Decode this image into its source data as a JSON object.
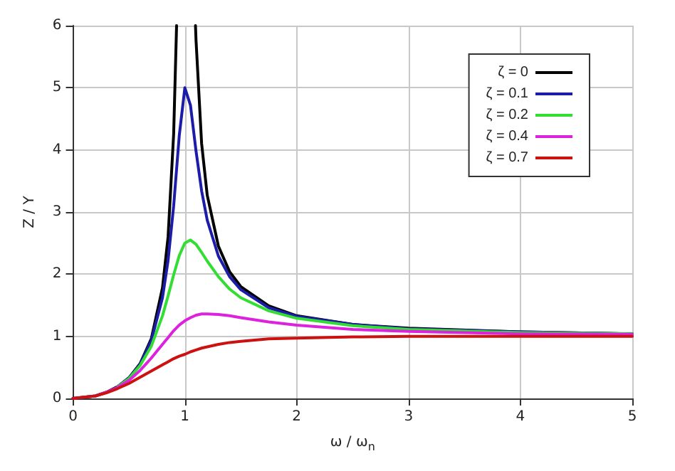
{
  "chart_data": {
    "type": "line",
    "xlabel": "ω / ω$_{n}$",
    "ylabel": "Z / Y",
    "x": [
      0,
      0.2,
      0.3,
      0.4,
      0.5,
      0.6,
      0.7,
      0.8,
      0.85,
      0.9,
      0.95,
      1,
      1.05,
      1.1,
      1.15,
      1.2,
      1.3,
      1.4,
      1.5,
      1.75,
      2,
      2.5,
      3,
      4,
      5
    ],
    "series": [
      {
        "name": "ζ = 0",
        "color": "#000000",
        "x": [
          0,
          0.2,
          0.3,
          0.4,
          0.5,
          0.6,
          0.7,
          0.8,
          0.85,
          0.9,
          0.926,
          1,
          1.095,
          1.1,
          1.15,
          1.2,
          1.3,
          1.4,
          1.5,
          1.75,
          2,
          2.5,
          3,
          4,
          5
        ],
        "values": [
          0,
          0.04,
          0.1,
          0.19,
          0.33,
          0.56,
          0.96,
          1.78,
          2.6,
          4.26,
          6,
          null,
          6,
          5.76,
          4.1,
          3.27,
          2.45,
          2.04,
          1.8,
          1.49,
          1.33,
          1.19,
          1.13,
          1.07,
          1.04
        ]
      },
      {
        "name": "ζ = 0.1",
        "color": "#1c1ca8",
        "values": [
          null,
          null,
          null,
          0.19,
          0.33,
          0.55,
          0.93,
          1.62,
          2.22,
          3.1,
          4.23,
          5,
          4.72,
          3.98,
          3.34,
          2.87,
          2.29,
          1.96,
          1.75,
          1.46,
          1.32,
          1.19,
          1.12,
          1.07,
          1.04
        ]
      },
      {
        "name": "ζ = 0.2",
        "color": "#33dd33",
        "values": [
          null,
          null,
          null,
          0.19,
          0.32,
          0.53,
          0.84,
          1.33,
          1.65,
          1.99,
          2.3,
          2.5,
          2.55,
          2.48,
          2.35,
          2.21,
          1.96,
          1.76,
          1.62,
          1.41,
          1.29,
          1.17,
          1.11,
          1.06,
          1.04
        ]
      },
      {
        "name": "ζ = 0.4",
        "color": "#dd22dd",
        "values": [
          0,
          0.04,
          0.1,
          0.18,
          0.29,
          0.45,
          0.65,
          0.87,
          0.98,
          1.09,
          1.18,
          1.25,
          1.3,
          1.34,
          1.36,
          1.36,
          1.35,
          1.33,
          1.3,
          1.23,
          1.18,
          1.11,
          1.08,
          1.04,
          1.03
        ]
      },
      {
        "name": "ζ = 0.7",
        "color": "#cc1111",
        "values": [
          0,
          0.04,
          0.09,
          0.16,
          0.24,
          0.34,
          0.44,
          0.54,
          0.59,
          0.64,
          0.68,
          0.71,
          0.75,
          0.78,
          0.81,
          0.83,
          0.87,
          0.9,
          0.92,
          0.96,
          0.97,
          0.99,
          1,
          1,
          1
        ]
      }
    ],
    "xlim": [
      0,
      5
    ],
    "xticks": [
      0,
      1,
      2,
      3,
      4,
      5
    ],
    "ylim": [
      0,
      6
    ],
    "yticks": [
      0,
      1,
      2,
      3,
      4,
      5,
      6
    ],
    "grid": true,
    "legend": "top right",
    "marker": "none",
    "line_style": "solid"
  }
}
